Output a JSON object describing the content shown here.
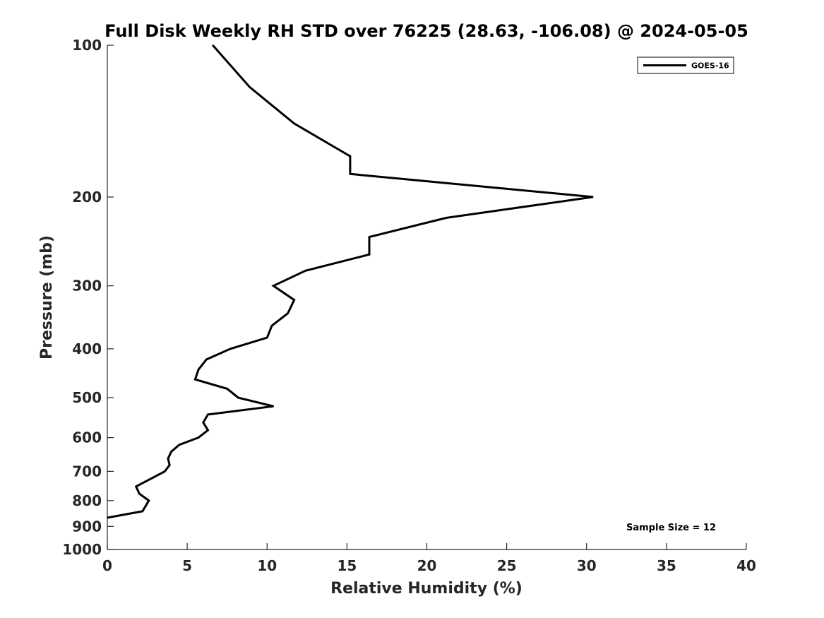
{
  "chart_data": {
    "type": "line",
    "title": "Full Disk Weekly RH STD over 76225 (28.63, -106.08) @ 2024-05-05",
    "xlabel": "Relative Humidity (%)",
    "ylabel": "Pressure (mb)",
    "xlim": [
      0,
      40
    ],
    "ylim": [
      100,
      1000
    ],
    "yscale": "log",
    "y_reversed": true,
    "grid": false,
    "legend_position": "top-right",
    "x_ticks": [
      "0",
      "5",
      "10",
      "15",
      "20",
      "25",
      "30",
      "35",
      "40"
    ],
    "y_ticks": [
      "100",
      "200",
      "300",
      "400",
      "500",
      "600",
      "700",
      "800",
      "900",
      "1000"
    ],
    "series": [
      {
        "name": "GOES-16",
        "color": "#000000",
        "points": [
          {
            "x": 6.6,
            "y": 100
          },
          {
            "x": 8.9,
            "y": 121
          },
          {
            "x": 11.7,
            "y": 143
          },
          {
            "x": 15.2,
            "y": 166
          },
          {
            "x": 15.2,
            "y": 180
          },
          {
            "x": 30.4,
            "y": 200
          },
          {
            "x": 21.2,
            "y": 220
          },
          {
            "x": 16.4,
            "y": 240
          },
          {
            "x": 16.4,
            "y": 260
          },
          {
            "x": 12.4,
            "y": 280
          },
          {
            "x": 10.4,
            "y": 300
          },
          {
            "x": 11.7,
            "y": 320
          },
          {
            "x": 11.3,
            "y": 340
          },
          {
            "x": 10.3,
            "y": 360
          },
          {
            "x": 10.0,
            "y": 380
          },
          {
            "x": 7.7,
            "y": 400
          },
          {
            "x": 6.2,
            "y": 420
          },
          {
            "x": 5.7,
            "y": 440
          },
          {
            "x": 5.5,
            "y": 460
          },
          {
            "x": 7.5,
            "y": 480
          },
          {
            "x": 8.2,
            "y": 500
          },
          {
            "x": 10.4,
            "y": 520
          },
          {
            "x": 6.3,
            "y": 540
          },
          {
            "x": 6.0,
            "y": 560
          },
          {
            "x": 6.3,
            "y": 580
          },
          {
            "x": 5.7,
            "y": 600
          },
          {
            "x": 4.5,
            "y": 620
          },
          {
            "x": 4.0,
            "y": 640
          },
          {
            "x": 3.8,
            "y": 660
          },
          {
            "x": 3.9,
            "y": 680
          },
          {
            "x": 3.6,
            "y": 700
          },
          {
            "x": 1.8,
            "y": 750
          },
          {
            "x": 2.0,
            "y": 775
          },
          {
            "x": 2.6,
            "y": 800
          },
          {
            "x": 2.2,
            "y": 840
          },
          {
            "x": 0.0,
            "y": 865
          }
        ]
      }
    ],
    "annotation": "Sample Size = 12"
  }
}
